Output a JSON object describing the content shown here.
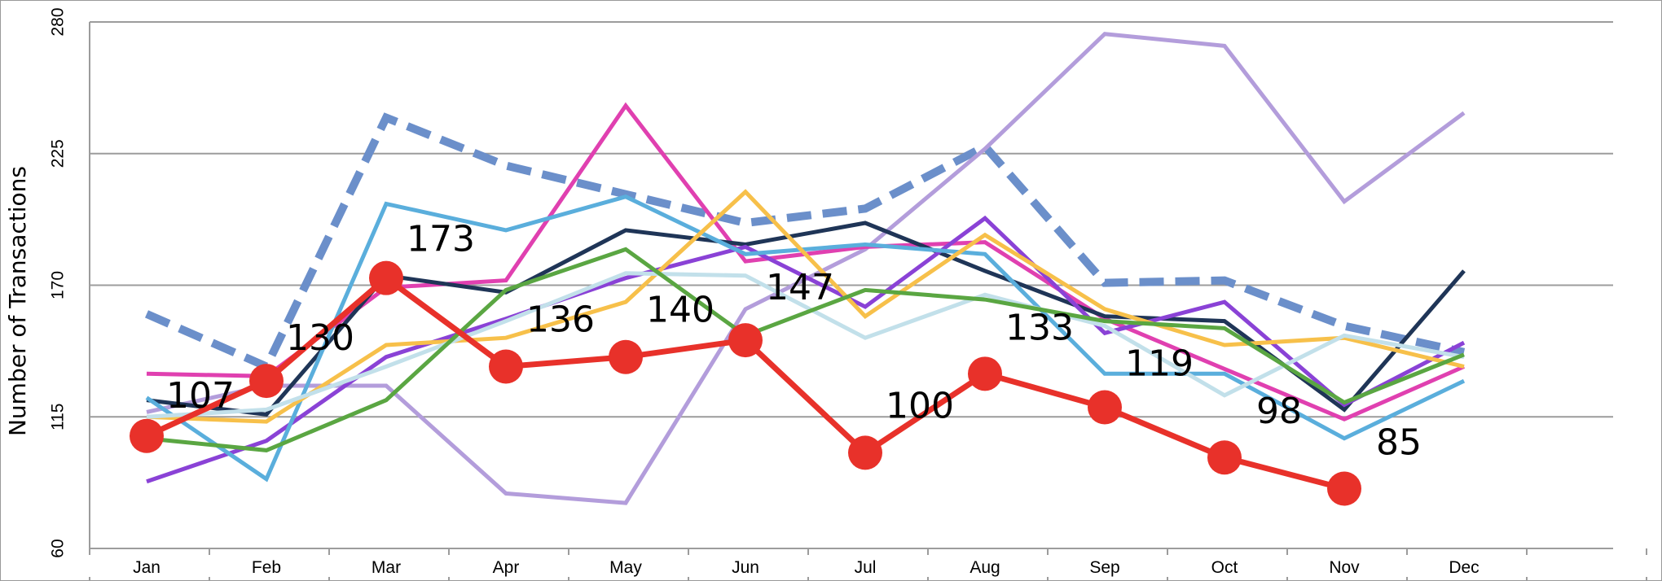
{
  "chart_data": {
    "type": "line",
    "title": "",
    "xlabel": "",
    "ylabel": "Number of Transactions",
    "ylim": [
      60,
      280
    ],
    "yticks": [
      60,
      115,
      170,
      225,
      280
    ],
    "grid": true,
    "legend": "none",
    "categories": [
      "Jan",
      "Feb",
      "Mar",
      "Apr",
      "May",
      "Jun",
      "Jul",
      "Aug",
      "Sep",
      "Oct",
      "Nov",
      "Dec"
    ],
    "series": [
      {
        "color": "#6b8fca",
        "style": "dashed",
        "values": [
          158,
          136,
          240,
          220,
          208,
          196,
          202,
          228,
          171,
          172,
          153,
          142
        ]
      },
      {
        "color": "#b39ddb",
        "style": "solid",
        "values": [
          117,
          128,
          128,
          83,
          79,
          160,
          185,
          227,
          275,
          270,
          205,
          242
        ]
      },
      {
        "color": "#e040b0",
        "style": "solid",
        "values": [
          133,
          132,
          169,
          172,
          245,
          180,
          186,
          188,
          156,
          135,
          114,
          136
        ]
      },
      {
        "color": "#1f3557",
        "style": "solid",
        "values": [
          122,
          116,
          174,
          167,
          193,
          187,
          196,
          176,
          157,
          155,
          118,
          176
        ]
      },
      {
        "color": "#8a42d6",
        "style": "solid",
        "values": [
          88,
          105,
          140,
          156,
          173,
          186,
          161,
          198,
          150,
          163,
          120,
          146
        ]
      },
      {
        "color": "#5aaedc",
        "style": "solid",
        "values": [
          123,
          89,
          204,
          193,
          207,
          183,
          187,
          183,
          133,
          133,
          106,
          130
        ]
      },
      {
        "color": "#f7c04a",
        "style": "solid",
        "values": [
          115,
          113,
          145,
          148,
          163,
          209,
          157,
          191,
          160,
          145,
          148,
          136
        ]
      },
      {
        "color": "#c2e0ea",
        "style": "solid",
        "values": [
          115,
          118,
          136,
          155,
          175,
          174,
          148,
          166,
          153,
          124,
          149,
          140
        ]
      },
      {
        "color": "#5aa642",
        "style": "solid",
        "values": [
          106,
          101,
          122,
          168,
          185,
          149,
          168,
          164,
          155,
          152,
          121,
          141
        ]
      },
      {
        "color": "#e8312a",
        "style": "markers",
        "values": [
          107,
          130,
          173,
          136,
          140,
          147,
          100,
          133,
          119,
          98,
          85,
          null
        ],
        "labels": [
          "107",
          "130",
          "173",
          "136",
          "140",
          "147",
          "100",
          "133",
          "119",
          "98",
          "85",
          ""
        ]
      }
    ]
  }
}
